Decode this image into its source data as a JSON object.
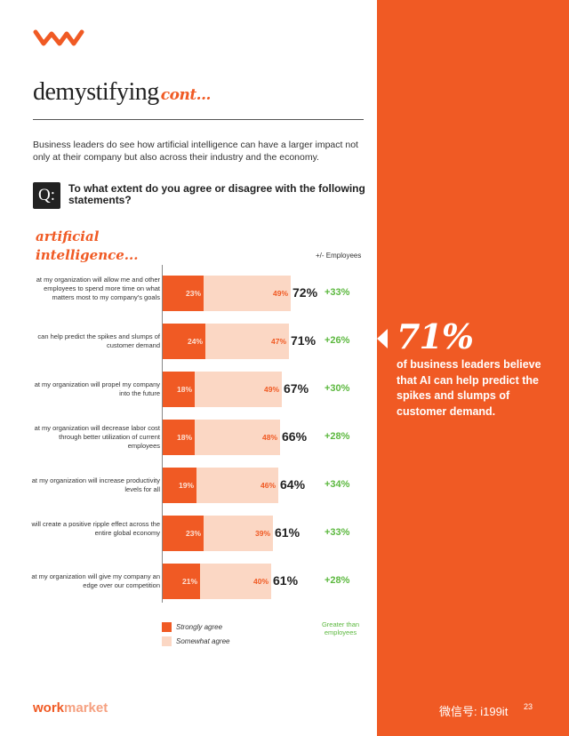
{
  "header": {
    "section_title": "demystifying",
    "section_suffix": "cont...",
    "intro": "Business leaders do see how artificial intelligence can have a larger impact not only at their company but also across their industry and the economy.",
    "question_badge": "Q:",
    "question": "To what extent do you agree or disagree with the following statements?"
  },
  "chart_data": {
    "type": "bar",
    "title_script": [
      "artificial",
      "intelligence..."
    ],
    "column_header": "+/- Employees",
    "categories": [
      "at my organization will allow me and other employees to spend more time on what matters most to my company's goals",
      "can help predict the spikes and slumps of customer demand",
      "at my organization will propel my company into the future",
      "at my organization will decrease labor cost through better utilization of current employees",
      "at my organization will increase productivity levels for all",
      "will create a positive ripple effect across the entire global economy",
      "at my organization will give my company an edge over our competition"
    ],
    "series": [
      {
        "name": "Strongly agree",
        "values": [
          23,
          24,
          18,
          18,
          19,
          23,
          21
        ],
        "color": "#f05a24"
      },
      {
        "name": "Somewhat agree",
        "values": [
          49,
          47,
          49,
          48,
          46,
          39,
          40
        ],
        "color": "#fbd7c4"
      }
    ],
    "totals": [
      72,
      71,
      67,
      66,
      64,
      61,
      61
    ],
    "vs_employees": [
      "+33%",
      "+26%",
      "+30%",
      "+28%",
      "+34%",
      "+33%",
      "+28%"
    ],
    "legend": [
      "Strongly agree",
      "Somewhat agree"
    ],
    "legend_note": "Greater than employees"
  },
  "callout": {
    "stat": "71%",
    "text": "of business leaders believe that AI can help predict the spikes and slumps of customer demand."
  },
  "footer": {
    "brand_part1": "work",
    "brand_part2": "market",
    "page_number": "23",
    "watermark": "微信号: i199it"
  },
  "colors": {
    "accent": "#f05a24",
    "accent_light": "#fbd7c4",
    "positive": "#5cb83f"
  }
}
